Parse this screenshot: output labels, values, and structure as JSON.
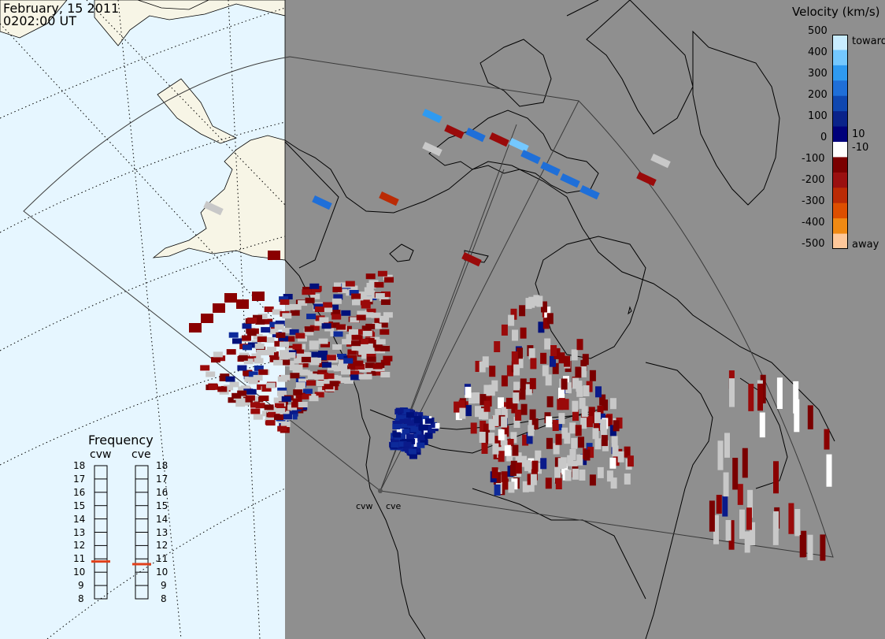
{
  "header": {
    "date": "February, 15 2011",
    "time": "0202:00 UT"
  },
  "colorbar": {
    "title": "Velocity (km/s)",
    "ticks": [
      "500",
      "400",
      "300",
      "200",
      "100",
      "10",
      "0",
      "-10",
      "-100",
      "-200",
      "-300",
      "-400",
      "-500"
    ],
    "toward_label": "toward",
    "away_label": "away",
    "colors": [
      "#c8ecff",
      "#74c8ff",
      "#2f9af0",
      "#1f6fd8",
      "#0f47b0",
      "#0a238a",
      "#00007a",
      "#ffffff",
      "#7a0000",
      "#9a1010",
      "#bb2b05",
      "#dd4f00",
      "#f08a14",
      "#ffc89a"
    ]
  },
  "frequency": {
    "title": "Frequency",
    "radars": [
      {
        "name": "cvw",
        "value_mhz": 10.8
      },
      {
        "name": "cve",
        "value_mhz": 10.6
      }
    ],
    "ticks": [
      "18",
      "17",
      "16",
      "15",
      "14",
      "13",
      "12",
      "11",
      "10",
      "9",
      "8"
    ],
    "range": [
      8,
      18
    ],
    "marker_color": "#e0401a"
  },
  "sites": [
    {
      "name": "cvw"
    },
    {
      "name": "cve"
    }
  ],
  "map": {
    "ocean_color": "#e6f6ff",
    "land_day_color": "#f7f5e6",
    "night_color": "#8f8f8f",
    "ground_scatter_color": "#c8c8c8"
  }
}
